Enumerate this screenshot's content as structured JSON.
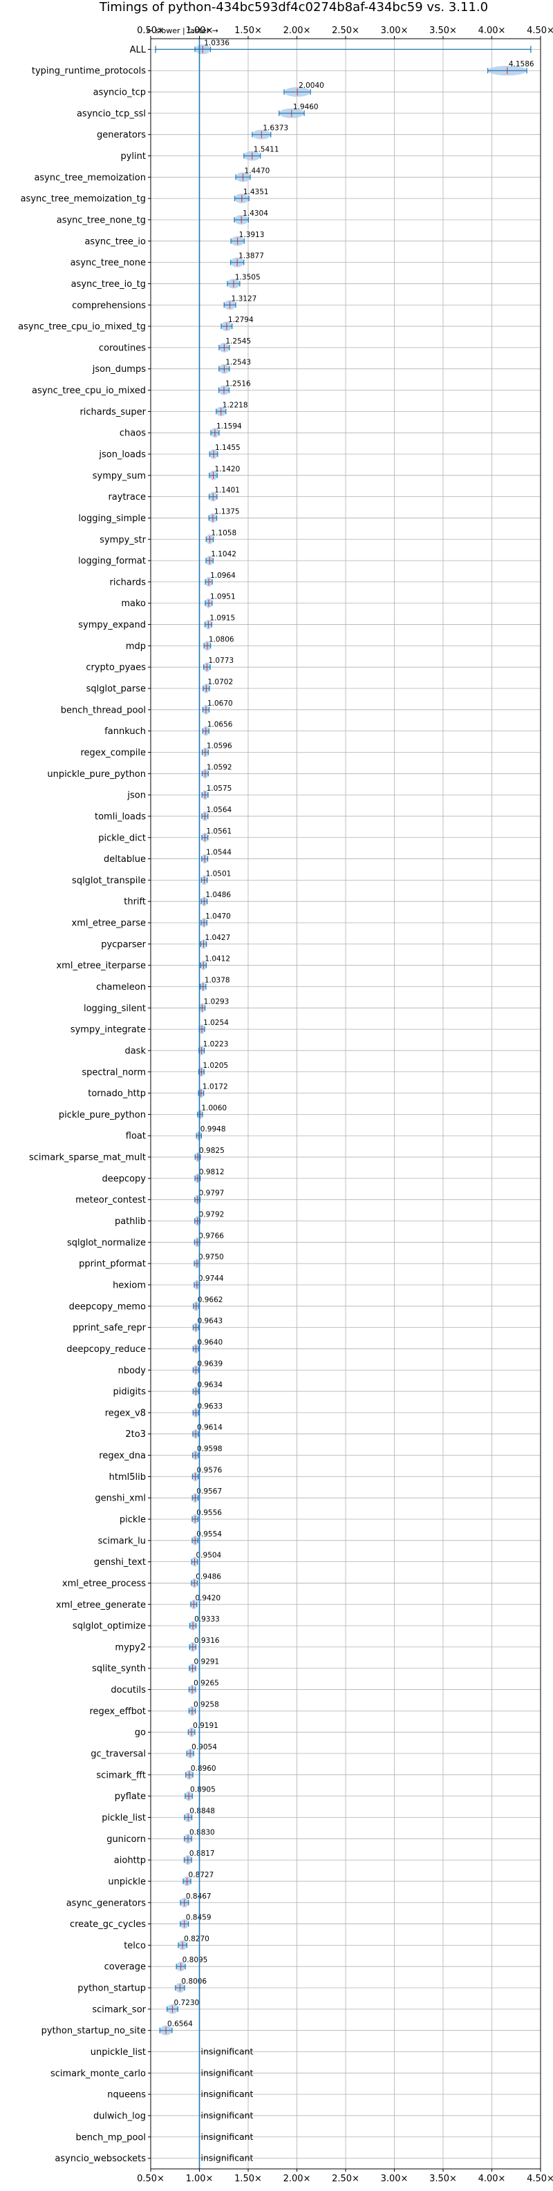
{
  "chart_data": {
    "type": "violin",
    "title": "Timings of python-434bc593df4c0274b8af-434bc59 vs. 3.11.0",
    "direction_note": "← slower | faster →",
    "xlim": [
      0.5,
      4.5
    ],
    "x_ticks": [
      0.5,
      1.0,
      1.5,
      2.0,
      2.5,
      3.0,
      3.5,
      4.0,
      4.5
    ],
    "x_tick_labels": [
      "0.50×",
      "1.00×",
      "1.50×",
      "2.00×",
      "2.50×",
      "3.00×",
      "3.50×",
      "4.00×",
      "4.50×"
    ],
    "reference_line": 1.0,
    "grid": true,
    "insignificant_label": "insignificant",
    "colors": {
      "violin": "#a8c8e8",
      "line": "#1f77b4",
      "median": "#d62728"
    },
    "benchmarks": [
      {
        "name": "ALL",
        "value": 1.0336,
        "label": "1.0336"
      },
      {
        "name": "typing_runtime_protocols",
        "value": 4.1586,
        "label": "4.1586"
      },
      {
        "name": "asyncio_tcp",
        "value": 2.004,
        "label": "2.0040"
      },
      {
        "name": "asyncio_tcp_ssl",
        "value": 1.946,
        "label": "1.9460"
      },
      {
        "name": "generators",
        "value": 1.6373,
        "label": "1.6373"
      },
      {
        "name": "pylint",
        "value": 1.5411,
        "label": "1.5411"
      },
      {
        "name": "async_tree_memoization",
        "value": 1.447,
        "label": "1.4470"
      },
      {
        "name": "async_tree_memoization_tg",
        "value": 1.4351,
        "label": "1.4351"
      },
      {
        "name": "async_tree_none_tg",
        "value": 1.4304,
        "label": "1.4304"
      },
      {
        "name": "async_tree_io",
        "value": 1.3913,
        "label": "1.3913"
      },
      {
        "name": "async_tree_none",
        "value": 1.3877,
        "label": "1.3877"
      },
      {
        "name": "async_tree_io_tg",
        "value": 1.3505,
        "label": "1.3505"
      },
      {
        "name": "comprehensions",
        "value": 1.3127,
        "label": "1.3127"
      },
      {
        "name": "async_tree_cpu_io_mixed_tg",
        "value": 1.2794,
        "label": "1.2794"
      },
      {
        "name": "coroutines",
        "value": 1.2545,
        "label": "1.2545"
      },
      {
        "name": "json_dumps",
        "value": 1.2543,
        "label": "1.2543"
      },
      {
        "name": "async_tree_cpu_io_mixed",
        "value": 1.2516,
        "label": "1.2516"
      },
      {
        "name": "richards_super",
        "value": 1.2218,
        "label": "1.2218"
      },
      {
        "name": "chaos",
        "value": 1.1594,
        "label": "1.1594"
      },
      {
        "name": "json_loads",
        "value": 1.1455,
        "label": "1.1455"
      },
      {
        "name": "sympy_sum",
        "value": 1.142,
        "label": "1.1420"
      },
      {
        "name": "raytrace",
        "value": 1.1401,
        "label": "1.1401"
      },
      {
        "name": "logging_simple",
        "value": 1.1375,
        "label": "1.1375"
      },
      {
        "name": "sympy_str",
        "value": 1.1058,
        "label": "1.1058"
      },
      {
        "name": "logging_format",
        "value": 1.1042,
        "label": "1.1042"
      },
      {
        "name": "richards",
        "value": 1.0964,
        "label": "1.0964"
      },
      {
        "name": "mako",
        "value": 1.0951,
        "label": "1.0951"
      },
      {
        "name": "sympy_expand",
        "value": 1.0915,
        "label": "1.0915"
      },
      {
        "name": "mdp",
        "value": 1.0806,
        "label": "1.0806"
      },
      {
        "name": "crypto_pyaes",
        "value": 1.0773,
        "label": "1.0773"
      },
      {
        "name": "sqlglot_parse",
        "value": 1.0702,
        "label": "1.0702"
      },
      {
        "name": "bench_thread_pool",
        "value": 1.067,
        "label": "1.0670"
      },
      {
        "name": "fannkuch",
        "value": 1.0656,
        "label": "1.0656"
      },
      {
        "name": "regex_compile",
        "value": 1.0596,
        "label": "1.0596"
      },
      {
        "name": "unpickle_pure_python",
        "value": 1.0592,
        "label": "1.0592"
      },
      {
        "name": "json",
        "value": 1.0575,
        "label": "1.0575"
      },
      {
        "name": "tomli_loads",
        "value": 1.0564,
        "label": "1.0564"
      },
      {
        "name": "pickle_dict",
        "value": 1.0561,
        "label": "1.0561"
      },
      {
        "name": "deltablue",
        "value": 1.0544,
        "label": "1.0544"
      },
      {
        "name": "sqlglot_transpile",
        "value": 1.0501,
        "label": "1.0501"
      },
      {
        "name": "thrift",
        "value": 1.0486,
        "label": "1.0486"
      },
      {
        "name": "xml_etree_parse",
        "value": 1.047,
        "label": "1.0470"
      },
      {
        "name": "pycparser",
        "value": 1.0427,
        "label": "1.0427"
      },
      {
        "name": "xml_etree_iterparse",
        "value": 1.0412,
        "label": "1.0412"
      },
      {
        "name": "chameleon",
        "value": 1.0378,
        "label": "1.0378"
      },
      {
        "name": "logging_silent",
        "value": 1.0293,
        "label": "1.0293"
      },
      {
        "name": "sympy_integrate",
        "value": 1.0254,
        "label": "1.0254"
      },
      {
        "name": "dask",
        "value": 1.0223,
        "label": "1.0223"
      },
      {
        "name": "spectral_norm",
        "value": 1.0205,
        "label": "1.0205"
      },
      {
        "name": "tornado_http",
        "value": 1.0172,
        "label": "1.0172"
      },
      {
        "name": "pickle_pure_python",
        "value": 1.006,
        "label": "1.0060"
      },
      {
        "name": "float",
        "value": 0.9948,
        "label": "0.9948"
      },
      {
        "name": "scimark_sparse_mat_mult",
        "value": 0.9825,
        "label": "0.9825"
      },
      {
        "name": "deepcopy",
        "value": 0.9812,
        "label": "0.9812"
      },
      {
        "name": "meteor_contest",
        "value": 0.9797,
        "label": "0.9797"
      },
      {
        "name": "pathlib",
        "value": 0.9792,
        "label": "0.9792"
      },
      {
        "name": "sqlglot_normalize",
        "value": 0.9766,
        "label": "0.9766"
      },
      {
        "name": "pprint_pformat",
        "value": 0.975,
        "label": "0.9750"
      },
      {
        "name": "hexiom",
        "value": 0.9744,
        "label": "0.9744"
      },
      {
        "name": "deepcopy_memo",
        "value": 0.9662,
        "label": "0.9662"
      },
      {
        "name": "pprint_safe_repr",
        "value": 0.9643,
        "label": "0.9643"
      },
      {
        "name": "deepcopy_reduce",
        "value": 0.964,
        "label": "0.9640"
      },
      {
        "name": "nbody",
        "value": 0.9639,
        "label": "0.9639"
      },
      {
        "name": "pidigits",
        "value": 0.9634,
        "label": "0.9634"
      },
      {
        "name": "regex_v8",
        "value": 0.9633,
        "label": "0.9633"
      },
      {
        "name": "2to3",
        "value": 0.9614,
        "label": "0.9614"
      },
      {
        "name": "regex_dna",
        "value": 0.9598,
        "label": "0.9598"
      },
      {
        "name": "html5lib",
        "value": 0.9576,
        "label": "0.9576"
      },
      {
        "name": "genshi_xml",
        "value": 0.9567,
        "label": "0.9567"
      },
      {
        "name": "pickle",
        "value": 0.9556,
        "label": "0.9556"
      },
      {
        "name": "scimark_lu",
        "value": 0.9554,
        "label": "0.9554"
      },
      {
        "name": "genshi_text",
        "value": 0.9504,
        "label": "0.9504"
      },
      {
        "name": "xml_etree_process",
        "value": 0.9486,
        "label": "0.9486"
      },
      {
        "name": "xml_etree_generate",
        "value": 0.942,
        "label": "0.9420"
      },
      {
        "name": "sqlglot_optimize",
        "value": 0.9333,
        "label": "0.9333"
      },
      {
        "name": "mypy2",
        "value": 0.9316,
        "label": "0.9316"
      },
      {
        "name": "sqlite_synth",
        "value": 0.9291,
        "label": "0.9291"
      },
      {
        "name": "docutils",
        "value": 0.9265,
        "label": "0.9265"
      },
      {
        "name": "regex_effbot",
        "value": 0.9258,
        "label": "0.9258"
      },
      {
        "name": "go",
        "value": 0.9191,
        "label": "0.9191"
      },
      {
        "name": "gc_traversal",
        "value": 0.9054,
        "label": "0.9054"
      },
      {
        "name": "scimark_fft",
        "value": 0.896,
        "label": "0.8960"
      },
      {
        "name": "pyflate",
        "value": 0.8905,
        "label": "0.8905"
      },
      {
        "name": "pickle_list",
        "value": 0.8848,
        "label": "0.8848"
      },
      {
        "name": "gunicorn",
        "value": 0.883,
        "label": "0.8830"
      },
      {
        "name": "aiohttp",
        "value": 0.8817,
        "label": "0.8817"
      },
      {
        "name": "unpickle",
        "value": 0.8727,
        "label": "0.8727"
      },
      {
        "name": "async_generators",
        "value": 0.8467,
        "label": "0.8467"
      },
      {
        "name": "create_gc_cycles",
        "value": 0.8459,
        "label": "0.8459"
      },
      {
        "name": "telco",
        "value": 0.827,
        "label": "0.8270"
      },
      {
        "name": "coverage",
        "value": 0.8095,
        "label": "0.8095"
      },
      {
        "name": "python_startup",
        "value": 0.8006,
        "label": "0.8006"
      },
      {
        "name": "scimark_sor",
        "value": 0.723,
        "label": "0.7230"
      },
      {
        "name": "python_startup_no_site",
        "value": 0.6564,
        "label": "0.6564"
      },
      {
        "name": "unpickle_list",
        "value": null,
        "label": "insignificant"
      },
      {
        "name": "scimark_monte_carlo",
        "value": null,
        "label": "insignificant"
      },
      {
        "name": "nqueens",
        "value": null,
        "label": "insignificant"
      },
      {
        "name": "dulwich_log",
        "value": null,
        "label": "insignificant"
      },
      {
        "name": "bench_mp_pool",
        "value": null,
        "label": "insignificant"
      },
      {
        "name": "asyncio_websockets",
        "value": null,
        "label": "insignificant"
      }
    ]
  }
}
